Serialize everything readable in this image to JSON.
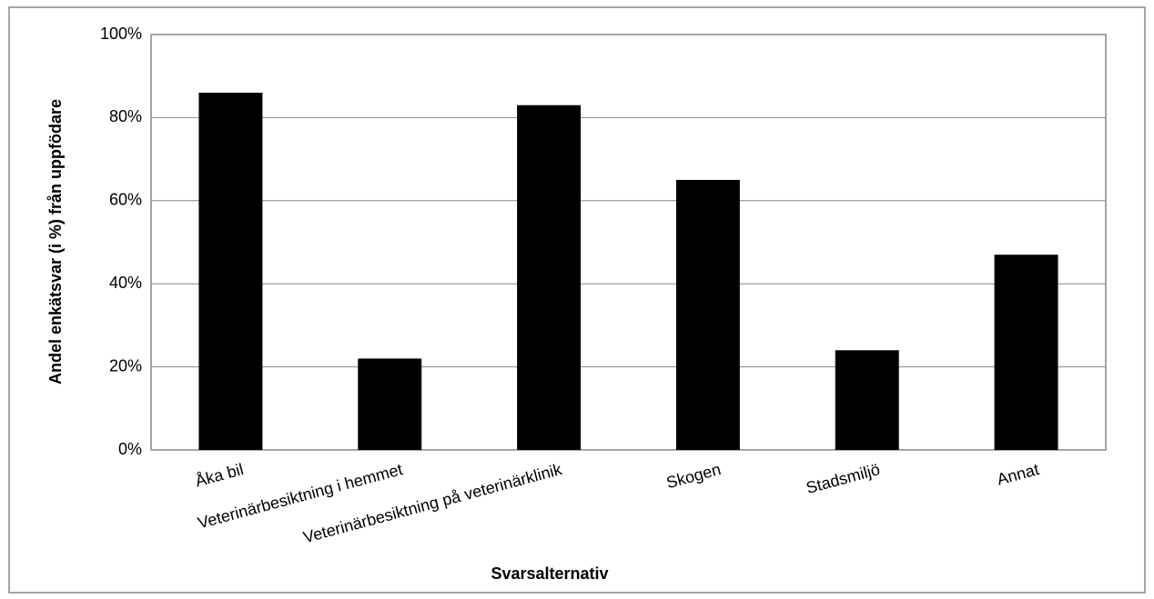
{
  "chart_data": {
    "type": "bar",
    "x_label": "Svarsalternativ",
    "y_label": "Andel enkätsvar (i %) från uppfödare",
    "categories": [
      "Åka bil",
      "Veterinärbesiktning i hemmet",
      "Veterinärbesiktning på veterinärklinik",
      "Skogen",
      "Stadsmiljö",
      "Annat"
    ],
    "values": [
      86,
      22,
      83,
      65,
      24,
      47
    ],
    "color": "#000000",
    "ylim": [
      0,
      100
    ],
    "yticks": [
      {
        "value": 0,
        "label": "0%"
      },
      {
        "value": 20,
        "label": "20%"
      },
      {
        "value": 40,
        "label": "40%"
      },
      {
        "value": 60,
        "label": "60%"
      },
      {
        "value": 80,
        "label": "80%"
      },
      {
        "value": 100,
        "label": "100%"
      }
    ],
    "grid": true
  }
}
